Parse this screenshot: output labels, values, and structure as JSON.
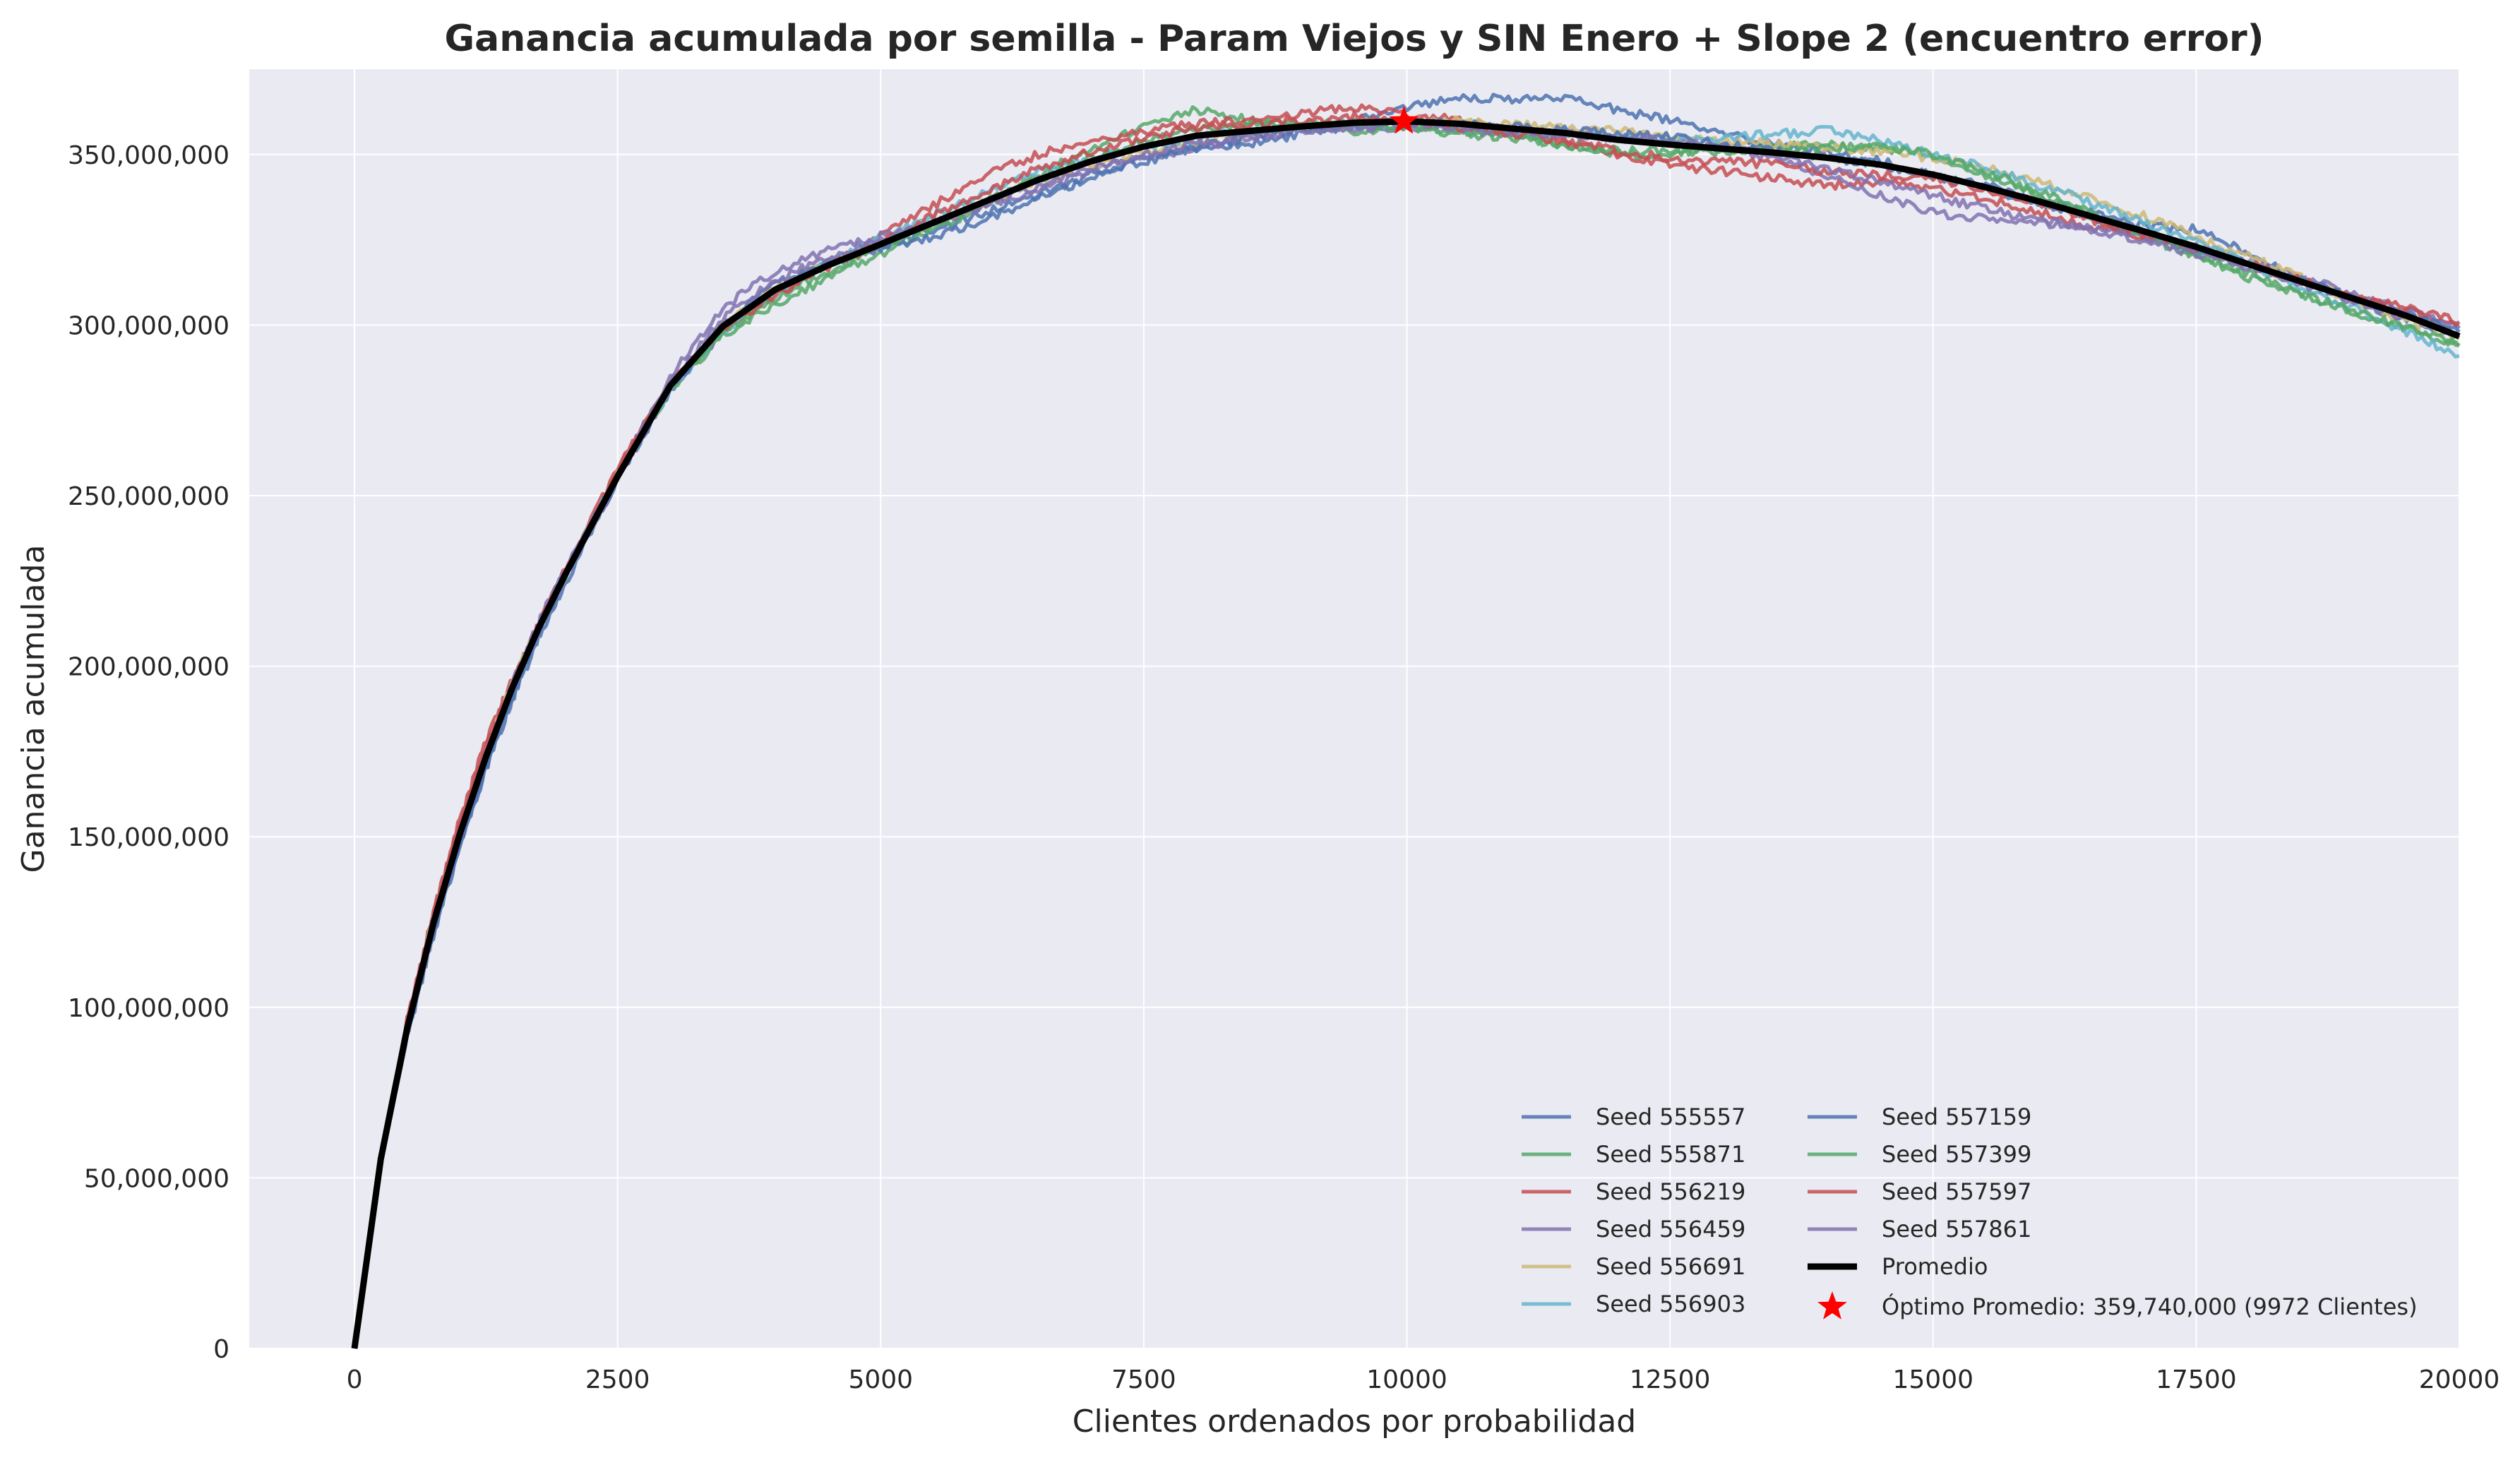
{
  "chart_data": {
    "type": "line",
    "title": "Ganancia acumulada por semilla - Param Viejos y SIN Enero + Slope 2 (encuentro error)",
    "xlabel": "Clientes ordenados por probabilidad",
    "ylabel": "Ganancia acumulada",
    "xlim": [
      -1000,
      20000
    ],
    "ylim": [
      0,
      375000000
    ],
    "xticks": [
      0,
      2500,
      5000,
      7500,
      10000,
      12500,
      15000,
      17500,
      20000
    ],
    "xtick_labels": [
      "0",
      "2500",
      "5000",
      "7500",
      "10000",
      "12500",
      "15000",
      "17500",
      "20000"
    ],
    "yticks": [
      0,
      50000000,
      100000000,
      150000000,
      200000000,
      250000000,
      300000000,
      350000000
    ],
    "ytick_labels": [
      "0",
      "50,000,000",
      "100,000,000",
      "150,000,000",
      "200,000,000",
      "250,000,000",
      "300,000,000",
      "350,000,000"
    ],
    "grid": true,
    "legend_position": "lower-right",
    "x": [
      0,
      250,
      500,
      750,
      1000,
      1250,
      1500,
      1750,
      2000,
      2500,
      3000,
      3500,
      4000,
      4500,
      5000,
      5500,
      6000,
      6500,
      7000,
      7500,
      8000,
      8500,
      9000,
      9500,
      10000,
      10500,
      11000,
      11500,
      12000,
      12500,
      13000,
      13500,
      14000,
      14500,
      15000,
      15500,
      16000,
      16500,
      17000,
      17500,
      18000,
      18500,
      19000,
      19500,
      20000
    ],
    "series": [
      {
        "name": "Seed 555557",
        "color": "#4c72b0",
        "values": [
          0,
          55000000,
          92000000,
          122000000,
          148000000,
          170000000,
          190000000,
          208000000,
          224000000,
          255000000,
          281000000,
          298000000,
          310000000,
          318000000,
          323000000,
          328000000,
          333000000,
          338000000,
          344000000,
          349000000,
          352000000,
          353000000,
          356000000,
          360000000,
          364000000,
          367000000,
          366000000,
          367000000,
          363000000,
          360000000,
          356000000,
          353000000,
          351000000,
          348000000,
          344000000,
          341000000,
          337000000,
          333000000,
          329000000,
          328000000,
          321000000,
          313000000,
          307000000,
          302000000,
          297000000
        ]
      },
      {
        "name": "Seed 555871",
        "color": "#55a868",
        "values": [
          0,
          56000000,
          94000000,
          125000000,
          151000000,
          173000000,
          193000000,
          211000000,
          226000000,
          256000000,
          281000000,
          297000000,
          306000000,
          314000000,
          321000000,
          328000000,
          335000000,
          344000000,
          352000000,
          358000000,
          363000000,
          360000000,
          358000000,
          357000000,
          358000000,
          356000000,
          355000000,
          352000000,
          350000000,
          350000000,
          351000000,
          352000000,
          353000000,
          352000000,
          350000000,
          344000000,
          338000000,
          332000000,
          326000000,
          320000000,
          314000000,
          309000000,
          304000000,
          299000000,
          294000000
        ]
      },
      {
        "name": "Seed 556219",
        "color": "#c44e52",
        "values": [
          0,
          57000000,
          96000000,
          128000000,
          155000000,
          178000000,
          196000000,
          212000000,
          228000000,
          258000000,
          283000000,
          299000000,
          309000000,
          318000000,
          326000000,
          335000000,
          344000000,
          350000000,
          354000000,
          357000000,
          359000000,
          360000000,
          362000000,
          364000000,
          362000000,
          360000000,
          357000000,
          354000000,
          350000000,
          347000000,
          345000000,
          343000000,
          341000000,
          342000000,
          340000000,
          337000000,
          333000000,
          329000000,
          326000000,
          322000000,
          318000000,
          313000000,
          308000000,
          304000000,
          300000000
        ]
      },
      {
        "name": "Seed 556459",
        "color": "#8172b2",
        "values": [
          0,
          55000000,
          93000000,
          124000000,
          150000000,
          173000000,
          195000000,
          213000000,
          228000000,
          256000000,
          285000000,
          305000000,
          316000000,
          322000000,
          326000000,
          330000000,
          335000000,
          340000000,
          345000000,
          349000000,
          352000000,
          355000000,
          357000000,
          358000000,
          358000000,
          357000000,
          356000000,
          356000000,
          355000000,
          354000000,
          352000000,
          349000000,
          344000000,
          338000000,
          333000000,
          331000000,
          330000000,
          328000000,
          326000000,
          323000000,
          319000000,
          314000000,
          309000000,
          304000000,
          299000000
        ]
      },
      {
        "name": "Seed 556691",
        "color": "#ccb974",
        "values": [
          0,
          56000000,
          95000000,
          126000000,
          152000000,
          175000000,
          195000000,
          212000000,
          227000000,
          256000000,
          282000000,
          300000000,
          311000000,
          318000000,
          324000000,
          330000000,
          336000000,
          342000000,
          347000000,
          351000000,
          354000000,
          356000000,
          358000000,
          359000000,
          360000000,
          360000000,
          359000000,
          358000000,
          357000000,
          355000000,
          354000000,
          353000000,
          352000000,
          351000000,
          349000000,
          346000000,
          342000000,
          337000000,
          332000000,
          326000000,
          320000000,
          314000000,
          307000000,
          301000000,
          296000000
        ]
      },
      {
        "name": "Seed 556903",
        "color": "#64b5cd",
        "values": [
          0,
          55000000,
          93000000,
          124000000,
          150000000,
          173000000,
          194000000,
          211000000,
          227000000,
          256000000,
          281000000,
          298000000,
          310000000,
          318000000,
          325000000,
          332000000,
          339000000,
          345000000,
          349000000,
          352000000,
          355000000,
          357000000,
          358000000,
          359000000,
          359000000,
          358000000,
          357000000,
          356000000,
          355000000,
          354000000,
          355000000,
          356000000,
          357000000,
          354000000,
          350000000,
          346000000,
          341000000,
          336000000,
          330000000,
          324000000,
          318000000,
          311000000,
          305000000,
          298000000,
          291000000
        ]
      },
      {
        "name": "Seed 557159",
        "color": "#4c72b0",
        "values": [
          0,
          54000000,
          91000000,
          121000000,
          147000000,
          170000000,
          191000000,
          210000000,
          226000000,
          255000000,
          281000000,
          300000000,
          312000000,
          318000000,
          322000000,
          326000000,
          331000000,
          337000000,
          343000000,
          348000000,
          352000000,
          355000000,
          357000000,
          358000000,
          360000000,
          359000000,
          358000000,
          357000000,
          356000000,
          355000000,
          353000000,
          351000000,
          349000000,
          347000000,
          344000000,
          340000000,
          336000000,
          332000000,
          327000000,
          322000000,
          318000000,
          313000000,
          308000000,
          303000000,
          298000000
        ]
      },
      {
        "name": "Seed 557399",
        "color": "#55a868",
        "values": [
          0,
          56000000,
          94000000,
          125000000,
          151000000,
          174000000,
          194000000,
          211000000,
          227000000,
          256000000,
          282000000,
          298000000,
          308000000,
          316000000,
          323000000,
          329000000,
          336000000,
          343000000,
          349000000,
          354000000,
          357000000,
          359000000,
          359000000,
          359000000,
          358000000,
          357000000,
          355000000,
          353000000,
          351000000,
          351000000,
          351000000,
          351000000,
          352000000,
          352000000,
          350000000,
          345000000,
          339000000,
          333000000,
          327000000,
          321000000,
          315000000,
          309000000,
          304000000,
          299000000,
          294000000
        ]
      },
      {
        "name": "Seed 557597",
        "color": "#c44e52",
        "values": [
          0,
          57000000,
          96000000,
          127000000,
          153000000,
          176000000,
          195000000,
          212000000,
          227000000,
          257000000,
          283000000,
          299000000,
          309000000,
          317000000,
          324000000,
          332000000,
          339000000,
          346000000,
          351000000,
          355000000,
          358000000,
          359000000,
          360000000,
          361000000,
          360000000,
          358000000,
          356000000,
          354000000,
          351000000,
          349000000,
          348000000,
          347000000,
          345000000,
          344000000,
          343000000,
          340000000,
          336000000,
          331000000,
          327000000,
          322000000,
          318000000,
          313000000,
          308000000,
          305000000,
          301000000
        ]
      },
      {
        "name": "Seed 557861",
        "color": "#8172b2",
        "values": [
          0,
          55000000,
          93000000,
          124000000,
          150000000,
          173000000,
          194000000,
          212000000,
          227000000,
          255000000,
          283000000,
          302000000,
          313000000,
          320000000,
          325000000,
          330000000,
          335000000,
          341000000,
          346000000,
          350000000,
          353000000,
          355000000,
          357000000,
          358000000,
          359000000,
          358000000,
          357000000,
          356000000,
          355000000,
          354000000,
          352000000,
          350000000,
          346000000,
          342000000,
          338000000,
          334000000,
          331000000,
          328000000,
          325000000,
          321000000,
          317000000,
          312000000,
          307000000,
          302000000,
          297000000
        ]
      },
      {
        "name": "Promedio",
        "color": "#000000",
        "values": [
          0,
          55500000,
          93700000,
          124600000,
          150700000,
          173500000,
          193700000,
          211200000,
          226700000,
          255600000,
          282200000,
          299600000,
          310400000,
          317500000,
          323700000,
          330000000,
          336300000,
          342600000,
          348000000,
          352300000,
          355500000,
          356900000,
          358200000,
          359300000,
          359700000,
          359000000,
          357600000,
          356300000,
          354300000,
          352900000,
          351700000,
          350500000,
          349000000,
          347000000,
          344100000,
          340400000,
          336300000,
          331900000,
          327500000,
          322900000,
          317800000,
          312700000,
          307700000,
          302700000,
          296700000
        ]
      }
    ],
    "optimum": {
      "label": "Óptimo Promedio: 359,740,000 (9972 Clientes)",
      "x": 9972,
      "y": 359740000,
      "color": "#ff0000"
    }
  }
}
